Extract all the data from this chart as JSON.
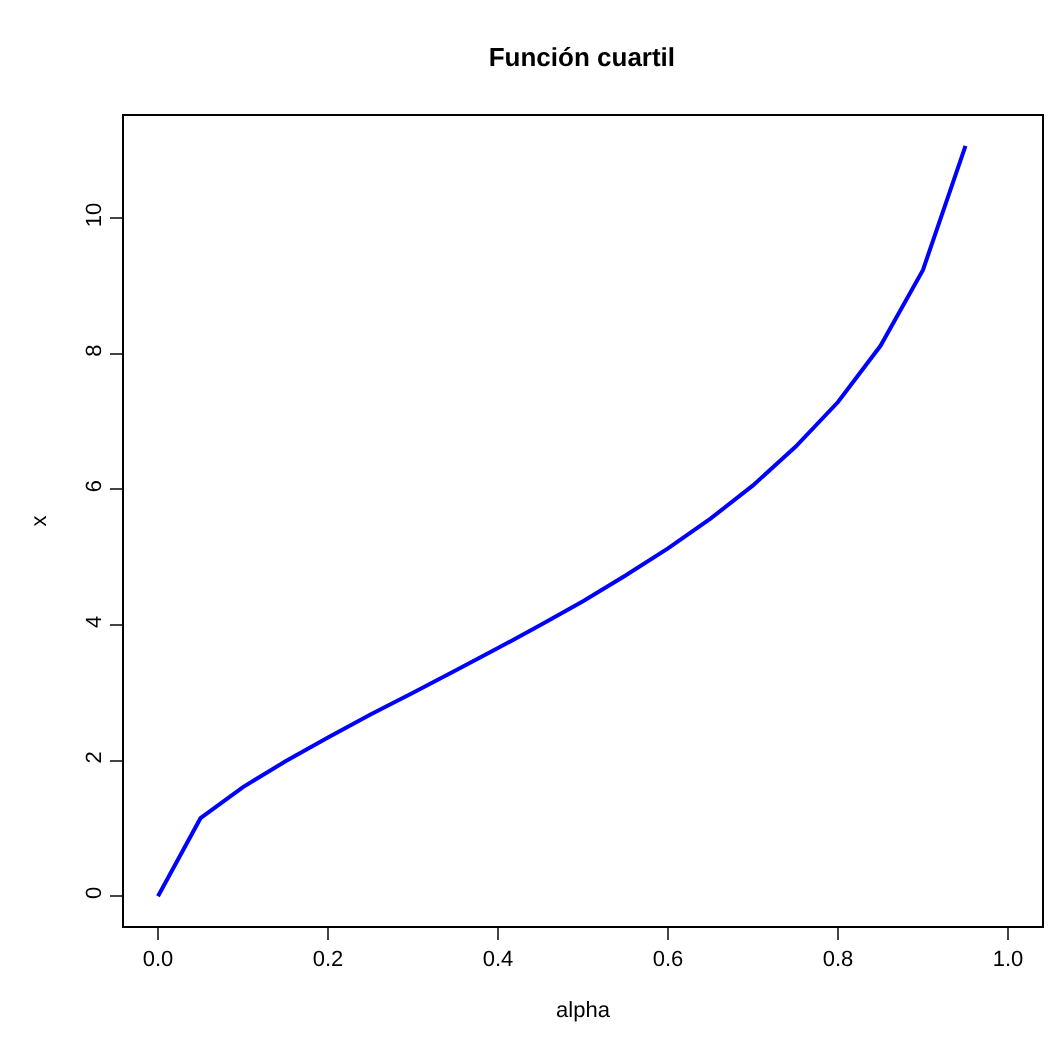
{
  "chart_data": {
    "type": "line",
    "title": "Función cuartil",
    "xlabel": "alpha",
    "ylabel": "x",
    "x": [
      0,
      0.05,
      0.1,
      0.15,
      0.2,
      0.25,
      0.3,
      0.35,
      0.4,
      0.45,
      0.5,
      0.55,
      0.6,
      0.65,
      0.7,
      0.75,
      0.8,
      0.85,
      0.9,
      0.95
    ],
    "series": [
      {
        "color": "#0000ff",
        "values": [
          0,
          1.15,
          1.61,
          1.99,
          2.34,
          2.68,
          3.0,
          3.33,
          3.66,
          4.0,
          4.35,
          4.73,
          5.13,
          5.57,
          6.06,
          6.63,
          7.29,
          8.12,
          9.24,
          11.07
        ]
      }
    ],
    "xlim": [
      -0.04,
      1.04
    ],
    "ylim": [
      -0.44,
      11.51
    ],
    "xticks": [
      {
        "value": 0,
        "label": "0.0"
      },
      0.2,
      0.4,
      0.6,
      0.8,
      {
        "value": 1,
        "label": "1.0"
      }
    ],
    "yticks": [
      0,
      2,
      4,
      6,
      8,
      10
    ],
    "marker": "none",
    "line_style": "solid"
  }
}
